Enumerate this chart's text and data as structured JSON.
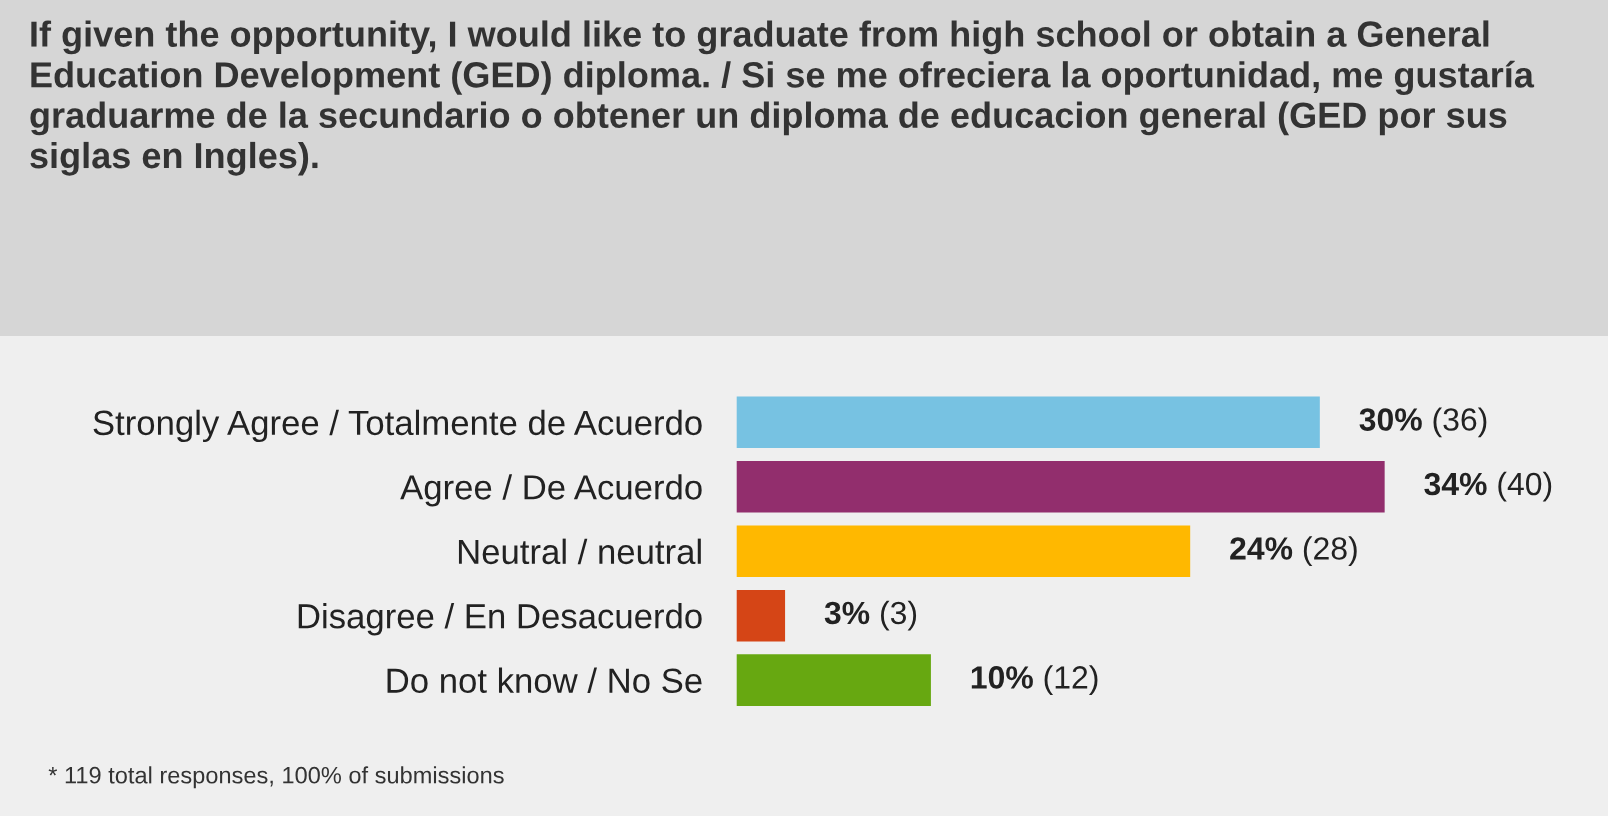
{
  "chart_data": {
    "type": "bar",
    "orientation": "horizontal",
    "title": "If given the opportunity, I would like to graduate from high school or obtain a General Education Development (GED) diploma. / Si se me ofreciera la oportunidad, me gustaría graduarme de la secundario o obtener un diploma de educacion general (GED por sus siglas en Ingles).",
    "categories": [
      "Strongly Agree / Totalmente de Acuerdo",
      "Agree / De Acuerdo",
      "Neutral / neutral",
      "Disagree / En Desacuerdo",
      "Do not know / No Se"
    ],
    "values": [
      36,
      40,
      28,
      3,
      12
    ],
    "colors": [
      "#77c2e2",
      "#922e6d",
      "#ffb800",
      "#d54516",
      "#67a811"
    ],
    "value_labels": [
      "30% (36)",
      "34% (40)",
      "24% (28)",
      "3% (3)",
      "10% (12)"
    ],
    "annotations": [
      "* 119 total responses, 100% of submissions"
    ],
    "grid": false,
    "legend": false,
    "tick_labels": "y"
  }
}
